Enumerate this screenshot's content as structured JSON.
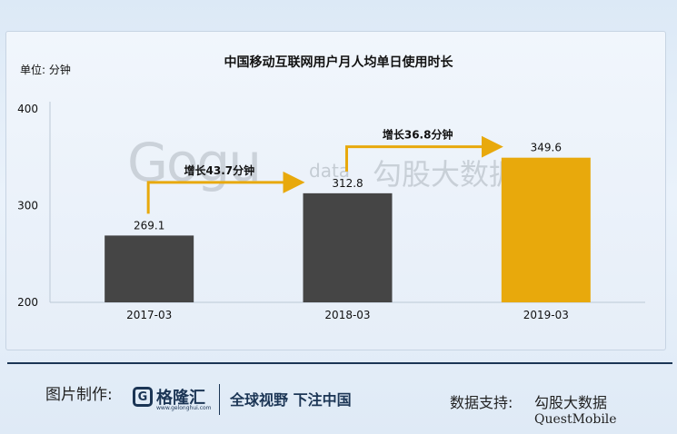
{
  "chart_data": {
    "type": "bar",
    "title": "中国移动互联网用户月人均单日使用时长",
    "ylabel": "单位: 分钟",
    "categories": [
      "2017-03",
      "2018-03",
      "2019-03"
    ],
    "values": [
      269.1,
      312.8,
      349.6
    ],
    "ylim": [
      200,
      400
    ],
    "yticks": [
      200,
      300,
      400
    ],
    "bar_colors": [
      "#454545",
      "#454545",
      "#e8a90c"
    ],
    "annotations": [
      {
        "text": "增长43.7分钟",
        "from": "2017-03",
        "to": "2018-03"
      },
      {
        "text": "增长36.8分钟",
        "from": "2018-03",
        "to": "2019-03"
      }
    ],
    "arrow_color": "#e8a90c",
    "grid": false
  },
  "watermark": {
    "brand": "Gogu",
    "sub": "data",
    "cn": "勾股大数据"
  },
  "footer": {
    "made_by_label": "图片制作:",
    "logo_char": "G",
    "logo_name": "格隆汇",
    "logo_url": "www.gelonghui.com",
    "slogan": "全球视野 下注中国",
    "support_label": "数据支持:",
    "support_1": "勾股大数据",
    "support_2": "QuestMobile"
  }
}
